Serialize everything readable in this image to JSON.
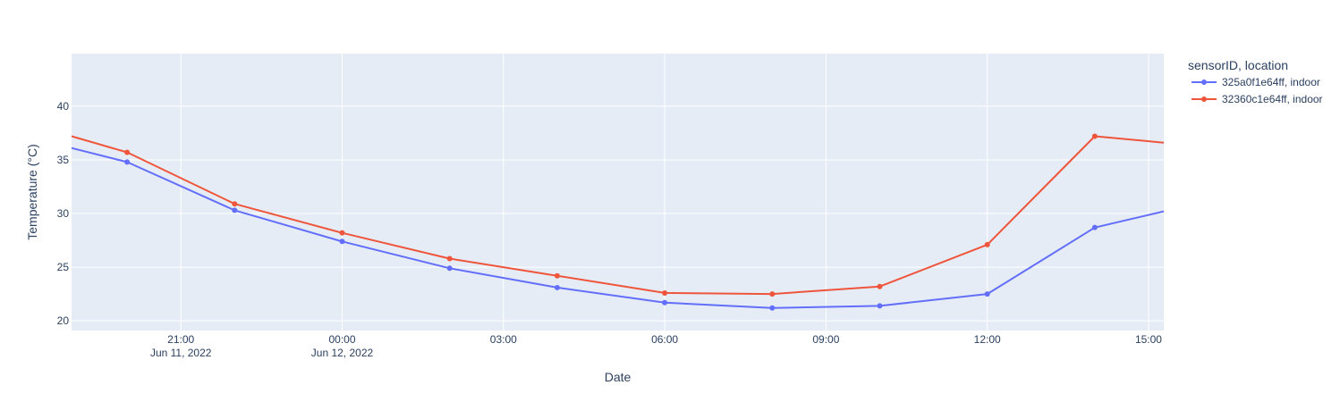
{
  "chart_data": {
    "type": "line",
    "xlabel": "Date",
    "ylabel": "Temperature (°C)",
    "x_ticks": [
      {
        "time": "2022-06-11T21:00",
        "label": "21:00",
        "sublabel": "Jun 11, 2022"
      },
      {
        "time": "2022-06-12T00:00",
        "label": "00:00",
        "sublabel": "Jun 12, 2022"
      },
      {
        "time": "2022-06-12T03:00",
        "label": "03:00",
        "sublabel": ""
      },
      {
        "time": "2022-06-12T06:00",
        "label": "06:00",
        "sublabel": ""
      },
      {
        "time": "2022-06-12T09:00",
        "label": "09:00",
        "sublabel": ""
      },
      {
        "time": "2022-06-12T12:00",
        "label": "12:00",
        "sublabel": ""
      },
      {
        "time": "2022-06-12T15:00",
        "label": "15:00",
        "sublabel": ""
      }
    ],
    "y_ticks": [
      20,
      25,
      30,
      35,
      40
    ],
    "xlim": [
      "2022-06-11T18:58",
      "2022-06-12T15:17"
    ],
    "ylim": [
      19.1,
      44.9
    ],
    "grid": true,
    "legend": {
      "title": "sensorID, location",
      "placement": "right"
    },
    "series": [
      {
        "name": "325a0f1e64ff, indoor",
        "color": "#636efa",
        "points": [
          {
            "x": "2022-06-11T18:58",
            "y": 36.1
          },
          {
            "x": "2022-06-11T20:00",
            "y": 34.8
          },
          {
            "x": "2022-06-11T22:00",
            "y": 30.3
          },
          {
            "x": "2022-06-12T00:00",
            "y": 27.4
          },
          {
            "x": "2022-06-12T02:00",
            "y": 24.9
          },
          {
            "x": "2022-06-12T04:00",
            "y": 23.1
          },
          {
            "x": "2022-06-12T06:00",
            "y": 21.7
          },
          {
            "x": "2022-06-12T08:00",
            "y": 21.2
          },
          {
            "x": "2022-06-12T10:00",
            "y": 21.4
          },
          {
            "x": "2022-06-12T12:00",
            "y": 22.5
          },
          {
            "x": "2022-06-12T14:00",
            "y": 28.7
          },
          {
            "x": "2022-06-12T15:17",
            "y": 30.2
          }
        ]
      },
      {
        "name": "32360c1e64ff, indoor",
        "color": "#ef553b",
        "points": [
          {
            "x": "2022-06-11T18:58",
            "y": 37.2
          },
          {
            "x": "2022-06-11T20:00",
            "y": 35.7
          },
          {
            "x": "2022-06-11T22:00",
            "y": 30.9
          },
          {
            "x": "2022-06-12T00:00",
            "y": 28.2
          },
          {
            "x": "2022-06-12T02:00",
            "y": 25.8
          },
          {
            "x": "2022-06-12T04:00",
            "y": 24.2
          },
          {
            "x": "2022-06-12T06:00",
            "y": 22.6
          },
          {
            "x": "2022-06-12T08:00",
            "y": 22.5
          },
          {
            "x": "2022-06-12T10:00",
            "y": 23.2
          },
          {
            "x": "2022-06-12T12:00",
            "y": 27.1
          },
          {
            "x": "2022-06-12T14:00",
            "y": 37.2
          },
          {
            "x": "2022-06-12T15:17",
            "y": 36.6
          }
        ]
      }
    ]
  }
}
